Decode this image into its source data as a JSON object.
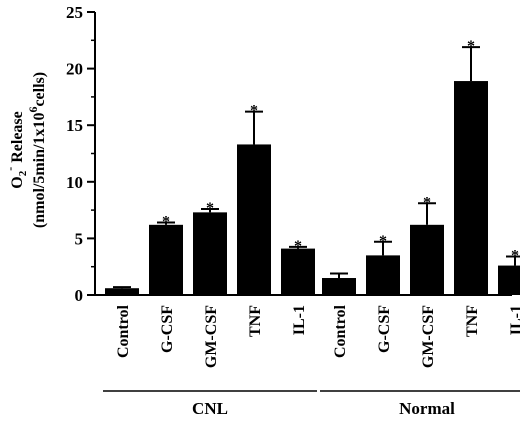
{
  "chart_data": {
    "type": "bar",
    "title": "",
    "ylabel_main": "O",
    "ylabel_sub": "2",
    "ylabel_sup": "-",
    "ylabel_rest": " Release",
    "ylabel_line2_pre": "(nmol/5min/1x10",
    "ylabel_line2_sup": "6",
    "ylabel_line2_post": "cells)",
    "ylim": [
      0,
      25
    ],
    "yticks": [
      0,
      5,
      10,
      15,
      20,
      25
    ],
    "grid": false,
    "groups": [
      {
        "name": "CNL",
        "categories": [
          "Control",
          "G-CSF",
          "GM-CSF",
          "TNF",
          "IL-1"
        ],
        "values": [
          0.6,
          6.2,
          7.3,
          13.3,
          4.1
        ],
        "errors": [
          0.1,
          0.2,
          0.3,
          2.9,
          0.15
        ],
        "significant": [
          false,
          true,
          true,
          true,
          true
        ]
      },
      {
        "name": "Normal",
        "categories": [
          "Control",
          "G-CSF",
          "GM-CSF",
          "TNF",
          "IL-1"
        ],
        "values": [
          1.5,
          3.5,
          6.2,
          18.9,
          2.6
        ],
        "errors": [
          0.4,
          1.2,
          1.9,
          3.0,
          0.8
        ],
        "significant": [
          false,
          true,
          true,
          true,
          true
        ]
      }
    ],
    "significance_marker": "*"
  }
}
